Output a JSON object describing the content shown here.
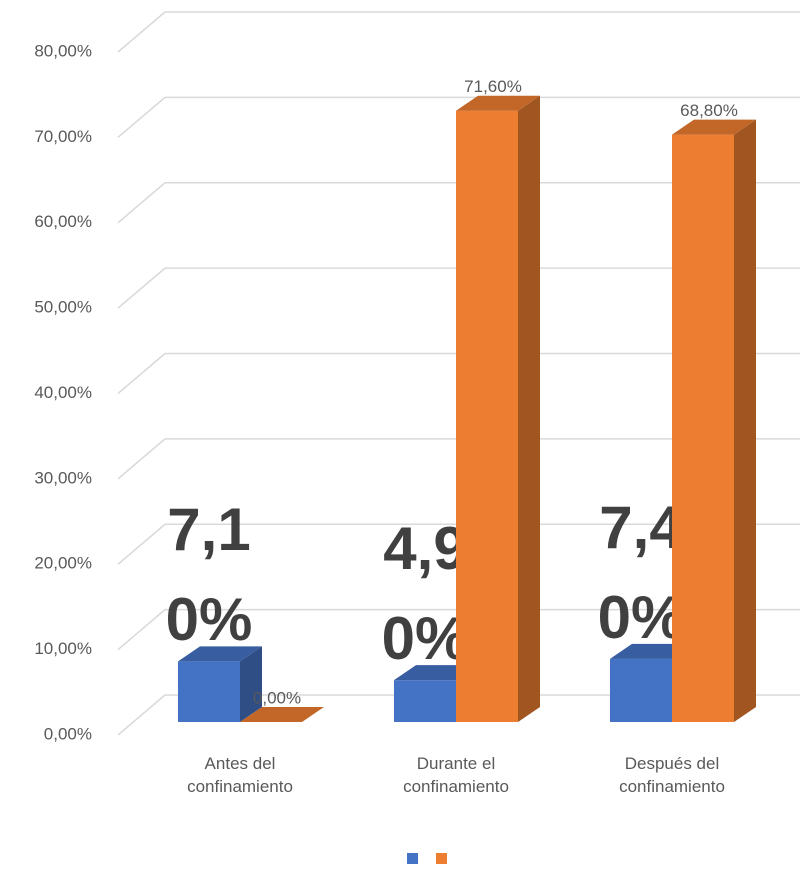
{
  "chart_data": {
    "type": "bar3d",
    "categories": [
      "Antes del confinamiento",
      "Durante el confinamiento",
      "Después del confinamiento"
    ],
    "series": [
      {
        "color": "#4472c4",
        "values": [
          7.1,
          4.9,
          7.4
        ],
        "value_labels": [
          "7,10%",
          "4,90%",
          "7,40%"
        ]
      },
      {
        "color": "#ed7d31",
        "values": [
          0,
          71.6,
          68.8
        ],
        "value_labels": [
          "0,00%",
          "71,60%",
          "68,80%"
        ]
      }
    ],
    "ylim": [
      0,
      80
    ],
    "yticks": [
      {
        "value": 0,
        "label": "0,00%"
      },
      {
        "value": 10,
        "label": "10,00%"
      },
      {
        "value": 20,
        "label": "20,00%"
      },
      {
        "value": 30,
        "label": "30,00%"
      },
      {
        "value": 40,
        "label": "40,00%"
      },
      {
        "value": 50,
        "label": "50,00%"
      },
      {
        "value": 60,
        "label": "60,00%"
      },
      {
        "value": 70,
        "label": "70,00%"
      },
      {
        "value": 80,
        "label": "80,00%"
      }
    ],
    "grid": true
  }
}
